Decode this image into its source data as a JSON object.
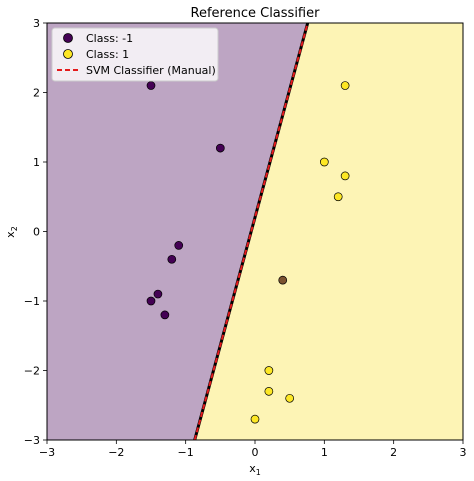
{
  "chart_data": {
    "type": "scatter",
    "title": "Reference Classifier",
    "xlabel": "x",
    "xlabel_sub": "1",
    "ylabel": "x",
    "ylabel_sub": "2",
    "xlim": [
      -3,
      3
    ],
    "ylim": [
      -3,
      3
    ],
    "xticks": [
      -3,
      -2,
      -1,
      0,
      1,
      2,
      3
    ],
    "yticks": [
      -3,
      -2,
      -1,
      0,
      1,
      2,
      3
    ],
    "tick_labels": [
      "−3",
      "−2",
      "−1",
      "0",
      "1",
      "2",
      "3"
    ],
    "grid": false,
    "legend_position": "top-left",
    "regions": {
      "negative_color": "#bda5c3",
      "positive_color": "#fdf4b5"
    },
    "boundary": {
      "name": "SVM Classifier (Manual)",
      "points": [
        [
          -0.87,
          -3
        ],
        [
          0.76,
          3
        ]
      ],
      "color": "#e41a1c",
      "style": "dashed"
    },
    "series": [
      {
        "name": "Class: -1",
        "color": "#440154",
        "points": [
          [
            -1.5,
            2.1
          ],
          [
            -0.5,
            1.2
          ],
          [
            -1.1,
            -0.2
          ],
          [
            -1.2,
            -0.4
          ],
          [
            -1.4,
            -0.9
          ],
          [
            -1.5,
            -1.0
          ],
          [
            -1.3,
            -1.2
          ]
        ]
      },
      {
        "name": "Class: 1",
        "color": "#fde725",
        "points": [
          [
            1.3,
            2.1
          ],
          [
            1.0,
            1.0
          ],
          [
            1.3,
            0.8
          ],
          [
            1.2,
            0.5
          ],
          [
            0.2,
            -2.0
          ],
          [
            0.2,
            -2.3
          ],
          [
            0.5,
            -2.4
          ],
          [
            0.0,
            -2.7
          ]
        ]
      }
    ],
    "misclassified_point": {
      "point": [
        0.4,
        -0.7
      ],
      "color": "#7b5230"
    }
  }
}
